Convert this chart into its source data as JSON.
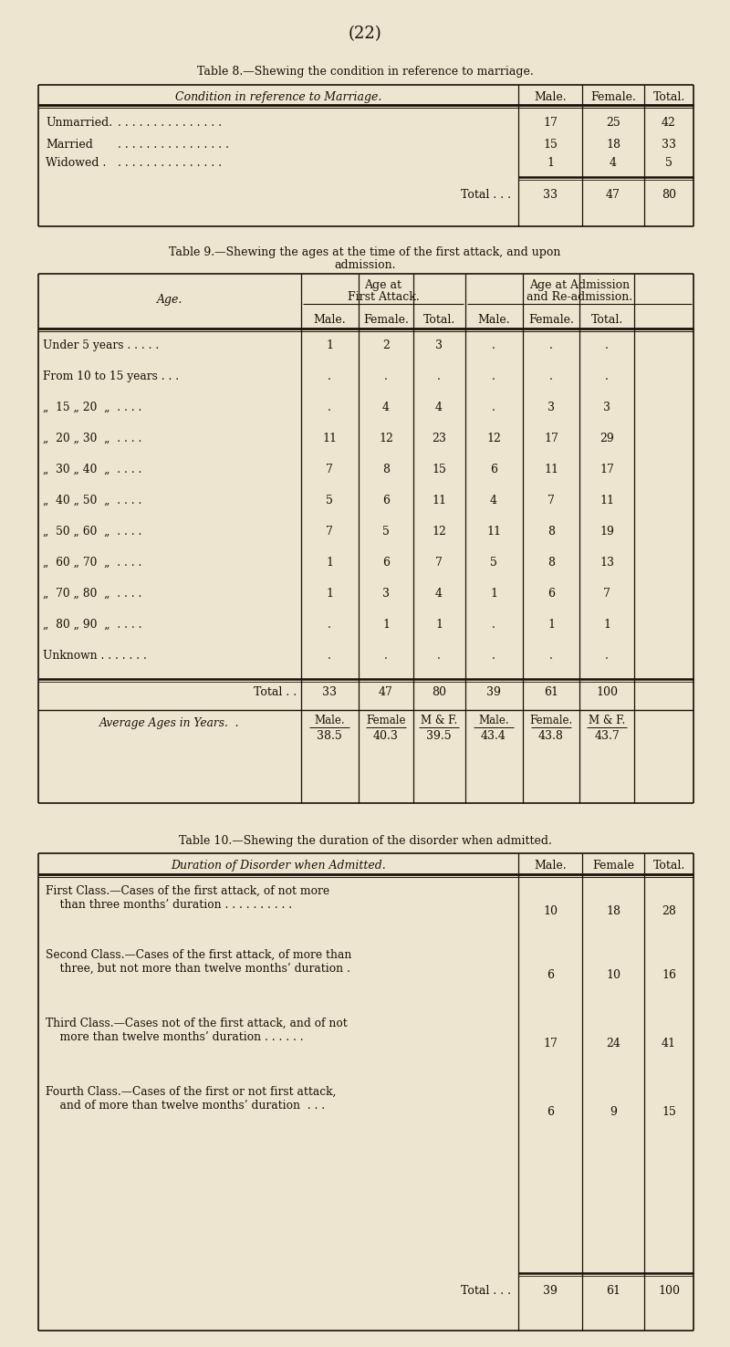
{
  "bg_color": "#ede5d0",
  "text_color": "#1a1008",
  "page_number": "(22)",
  "table8": {
    "title": "Table 8.—Shewing the condition in reference to marriage.",
    "header_label": "Condition in reference to Marriage.",
    "header_cols": [
      "Male.",
      "Female.",
      "Total."
    ],
    "rows": [
      {
        "label": "Unmarried.",
        "dots": " . . . . . . . . . . . . . . .",
        "vals": [
          "17",
          "25",
          "42"
        ]
      },
      {
        "label": "Married",
        "dots": " . . . . . . . . . . . . . . . .",
        "vals": [
          "15",
          "18",
          "33"
        ]
      },
      {
        "label": "Widowed .",
        "dots": " . . . . . . . . . . . . . . .",
        "vals": [
          "1",
          "4",
          "5"
        ]
      }
    ],
    "total_label": "Total . . .",
    "total_vals": [
      "33",
      "47",
      "80"
    ]
  },
  "table9": {
    "title1": "Table 9.—Shewing the ages at the time of the first attack, and upon",
    "title2": "admission.",
    "rows": [
      {
        "label": "Under 5 years . . . . .",
        "fa": [
          "1",
          "2",
          "3"
        ],
        "adm": [
          ".",
          ".",
          "."
        ]
      },
      {
        "label": "From 10 to 15 years . . .",
        "fa": [
          ".",
          ".",
          "."
        ],
        "adm": [
          ".",
          ".",
          "."
        ]
      },
      {
        "label": "„  15 „ 20  „  . . . .",
        "fa": [
          ".",
          "4",
          "4"
        ],
        "adm": [
          ".",
          "3",
          "3"
        ]
      },
      {
        "label": "„  20 „ 30  „  . . . .",
        "fa": [
          "11",
          "12",
          "23"
        ],
        "adm": [
          "12",
          "17",
          "29"
        ]
      },
      {
        "label": "„  30 „ 40  „  . . . .",
        "fa": [
          "7",
          "8",
          "15"
        ],
        "adm": [
          "6",
          "11",
          "17"
        ]
      },
      {
        "label": "„  40 „ 50  „  . . . .",
        "fa": [
          "5",
          "6",
          "11"
        ],
        "adm": [
          "4",
          "7",
          "11"
        ]
      },
      {
        "label": "„  50 „ 60  „  . . . .",
        "fa": [
          "7",
          "5",
          "12"
        ],
        "adm": [
          "11",
          "8",
          "19"
        ]
      },
      {
        "label": "„  60 „ 70  „  . . . .",
        "fa": [
          "1",
          "6",
          "7"
        ],
        "adm": [
          "5",
          "8",
          "13"
        ]
      },
      {
        "label": "„  70 „ 80  „  . . . .",
        "fa": [
          "1",
          "3",
          "4"
        ],
        "adm": [
          "1",
          "6",
          "7"
        ]
      },
      {
        "label": "„  80 „ 90  „  . . . .",
        "fa": [
          ".",
          "1",
          "1"
        ],
        "adm": [
          ".",
          "1",
          "1"
        ]
      },
      {
        "label": "Unknown . . . . . . .",
        "fa": [
          ".",
          ".",
          "."
        ],
        "adm": [
          ".",
          ".",
          "."
        ]
      }
    ],
    "total_fa": [
      "33",
      "47",
      "80"
    ],
    "total_adm": [
      "39",
      "61",
      "100"
    ],
    "avg_label": "Average Ages in Years.  .",
    "avg_sh_fa": [
      "Male.",
      "Female",
      "M & F."
    ],
    "avg_sh_adm": [
      "Male.",
      "Female.",
      "M & F."
    ],
    "avg_fa": [
      "38.5",
      "40.3",
      "39.5"
    ],
    "avg_adm": [
      "43.4",
      "43.8",
      "43.7"
    ]
  },
  "table10": {
    "title": "Table 10.—Shewing the duration of the disorder when admitted.",
    "header_label": "Duration of Disorder when Admitted.",
    "header_cols": [
      "Male.",
      "Female",
      "Total."
    ],
    "rows": [
      {
        "line1": "First Class.—Cases of the first attack, of not more",
        "line2": "    than three months’ duration . . . . . . . . . .",
        "vals": [
          "10",
          "18",
          "28"
        ]
      },
      {
        "line1": "Second Class.—Cases of the first attack, of more than",
        "line2": "    three, but not more than twelve months’ duration .",
        "vals": [
          "6",
          "10",
          "16"
        ]
      },
      {
        "line1": "Third Class.—Cases not of the first attack, and of not",
        "line2": "    more than twelve months’ duration . . . . . .",
        "vals": [
          "17",
          "24",
          "41"
        ]
      },
      {
        "line1": "Fourth Class.—Cases of the first or not first attack,",
        "line2": "    and of more than twelve months’ duration  . . .",
        "vals": [
          "6",
          "9",
          "15"
        ]
      }
    ],
    "total_label": "Total . . .",
    "total_vals": [
      "39",
      "61",
      "100"
    ]
  }
}
